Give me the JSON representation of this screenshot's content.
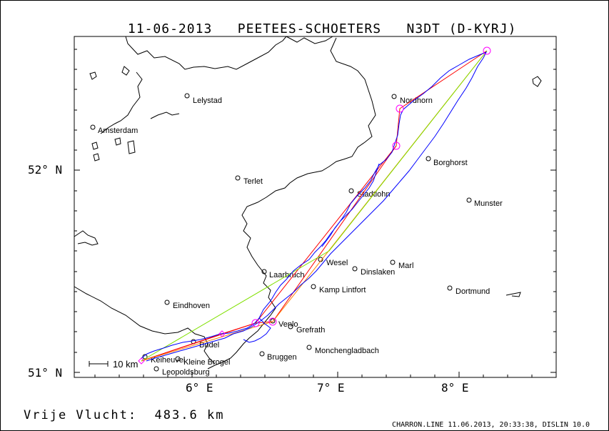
{
  "header": {
    "date": "11-06-2013",
    "pilot": "PEETEES-SCHOETERS",
    "aircraft": "N3DT (D-KYRJ)"
  },
  "axes": {
    "lat_labels": [
      "52° N",
      "51° N"
    ],
    "lon_labels": [
      "6° E",
      "7° E",
      "8° E"
    ]
  },
  "scale": {
    "label": "10 km"
  },
  "cities": [
    "Lelystad",
    "Amsterdam",
    "Nordhorn",
    "Borghorst",
    "Terlet",
    "Stadtlohn",
    "Munster",
    "Wesel",
    "Marl",
    "Laarbruch",
    "Dinslaken",
    "Kamp Lintfort",
    "Dortmund",
    "Eindhoven",
    "Venlo",
    "Grefrath",
    "Budel",
    "Monchengladbach",
    "Bruggen",
    "Keiheuvel",
    "Kleine Brogel",
    "Leopoldsburg"
  ],
  "summary": {
    "distance_label": "Vrije Vlucht:",
    "distance_value": "483.6 km"
  },
  "footer": {
    "text": "CHARRON.LINE 11.06.2013, 20:33:38, DISLIN 10.0"
  },
  "colors": {
    "track": "#0000ff",
    "task_red": "#ff0000",
    "task_orange": "#ff8000",
    "task_green": "#80e000",
    "turnpoint": "#ff00ff"
  }
}
